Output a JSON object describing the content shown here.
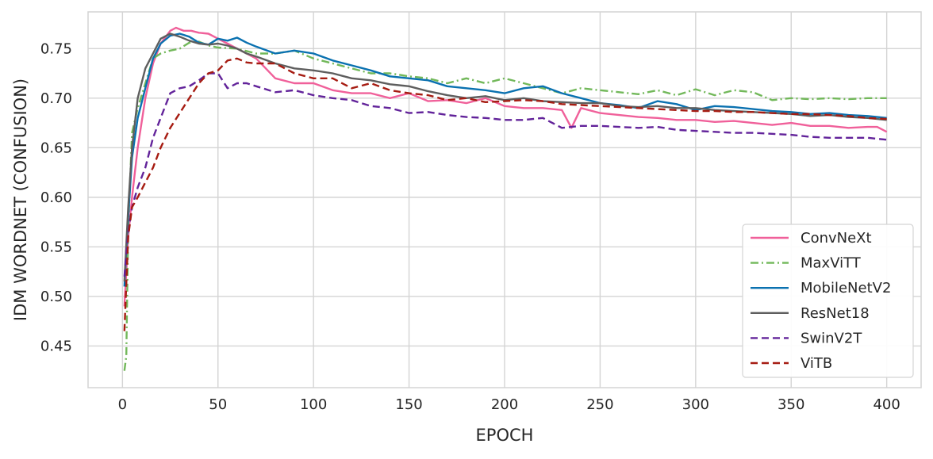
{
  "chart_data": {
    "type": "line",
    "title": "",
    "xlabel": "EPOCH",
    "ylabel": "IDM WORDNET (CONFUSION)",
    "xlim": [
      -18,
      418
    ],
    "ylim": [
      0.408,
      0.787
    ],
    "xticks": [
      0,
      50,
      100,
      150,
      200,
      250,
      300,
      350,
      400
    ],
    "yticks": [
      0.45,
      0.5,
      0.55,
      0.6,
      0.65,
      0.7,
      0.75
    ],
    "ytick_labels": [
      "0.45",
      "0.50",
      "0.55",
      "0.60",
      "0.65",
      "0.70",
      "0.75"
    ],
    "grid": true,
    "legend_position": "lower-right",
    "series": [
      {
        "name": "ConvNeXt",
        "color": "#f0609a",
        "dash": "solid",
        "x": [
          1,
          3,
          5,
          8,
          12,
          16,
          20,
          25,
          28,
          32,
          36,
          40,
          45,
          50,
          55,
          60,
          65,
          70,
          75,
          80,
          90,
          100,
          110,
          120,
          130,
          140,
          150,
          160,
          170,
          180,
          190,
          200,
          210,
          220,
          230,
          235,
          240,
          250,
          260,
          270,
          280,
          290,
          300,
          310,
          320,
          330,
          340,
          350,
          360,
          370,
          380,
          390,
          395,
          400
        ],
        "y": [
          0.49,
          0.56,
          0.6,
          0.65,
          0.7,
          0.735,
          0.755,
          0.768,
          0.771,
          0.768,
          0.768,
          0.766,
          0.765,
          0.76,
          0.755,
          0.75,
          0.745,
          0.74,
          0.73,
          0.72,
          0.715,
          0.715,
          0.708,
          0.705,
          0.705,
          0.7,
          0.705,
          0.697,
          0.698,
          0.695,
          0.7,
          0.692,
          0.69,
          0.69,
          0.688,
          0.67,
          0.69,
          0.685,
          0.683,
          0.681,
          0.68,
          0.678,
          0.678,
          0.676,
          0.677,
          0.675,
          0.673,
          0.675,
          0.672,
          0.672,
          0.67,
          0.671,
          0.671,
          0.666
        ]
      },
      {
        "name": "MaxViTT",
        "color": "#72b85a",
        "dash": "dashdot",
        "x": [
          1,
          2,
          3,
          5,
          8,
          12,
          16,
          20,
          25,
          30,
          35,
          40,
          45,
          50,
          60,
          70,
          80,
          90,
          100,
          110,
          120,
          130,
          140,
          150,
          160,
          170,
          180,
          190,
          200,
          210,
          220,
          230,
          240,
          250,
          260,
          270,
          280,
          290,
          300,
          310,
          320,
          330,
          340,
          350,
          360,
          370,
          380,
          390,
          400
        ],
        "y": [
          0.425,
          0.44,
          0.57,
          0.665,
          0.69,
          0.715,
          0.74,
          0.745,
          0.748,
          0.75,
          0.756,
          0.757,
          0.753,
          0.751,
          0.75,
          0.745,
          0.745,
          0.748,
          0.74,
          0.735,
          0.73,
          0.725,
          0.725,
          0.722,
          0.72,
          0.715,
          0.72,
          0.715,
          0.72,
          0.715,
          0.71,
          0.705,
          0.71,
          0.708,
          0.706,
          0.704,
          0.708,
          0.703,
          0.709,
          0.703,
          0.708,
          0.706,
          0.698,
          0.7,
          0.699,
          0.7,
          0.699,
          0.7,
          0.7
        ]
      },
      {
        "name": "MobileNetV2",
        "color": "#0a71b0",
        "dash": "solid",
        "x": [
          1,
          3,
          5,
          8,
          12,
          16,
          20,
          25,
          30,
          35,
          40,
          45,
          50,
          55,
          60,
          65,
          70,
          80,
          90,
          100,
          110,
          120,
          130,
          140,
          150,
          160,
          170,
          180,
          190,
          200,
          210,
          220,
          230,
          240,
          250,
          260,
          270,
          280,
          290,
          300,
          310,
          320,
          330,
          340,
          350,
          360,
          370,
          380,
          390,
          400
        ],
        "y": [
          0.51,
          0.58,
          0.64,
          0.68,
          0.71,
          0.74,
          0.755,
          0.763,
          0.765,
          0.762,
          0.756,
          0.754,
          0.76,
          0.758,
          0.761,
          0.756,
          0.752,
          0.745,
          0.748,
          0.745,
          0.738,
          0.733,
          0.728,
          0.722,
          0.72,
          0.718,
          0.712,
          0.71,
          0.708,
          0.705,
          0.71,
          0.712,
          0.705,
          0.7,
          0.695,
          0.693,
          0.69,
          0.697,
          0.694,
          0.688,
          0.692,
          0.691,
          0.689,
          0.687,
          0.686,
          0.684,
          0.685,
          0.683,
          0.682,
          0.68
        ]
      },
      {
        "name": "ResNet18",
        "color": "#5e5e5e",
        "dash": "solid",
        "x": [
          1,
          3,
          5,
          8,
          12,
          16,
          20,
          25,
          30,
          35,
          40,
          45,
          50,
          55,
          60,
          65,
          70,
          80,
          90,
          100,
          110,
          120,
          130,
          140,
          150,
          160,
          170,
          180,
          190,
          200,
          210,
          220,
          230,
          240,
          250,
          260,
          270,
          280,
          290,
          300,
          310,
          320,
          330,
          340,
          350,
          360,
          370,
          380,
          390,
          400
        ],
        "y": [
          0.515,
          0.59,
          0.65,
          0.7,
          0.73,
          0.745,
          0.76,
          0.765,
          0.762,
          0.758,
          0.755,
          0.754,
          0.755,
          0.753,
          0.75,
          0.745,
          0.742,
          0.735,
          0.73,
          0.728,
          0.725,
          0.72,
          0.718,
          0.714,
          0.712,
          0.707,
          0.703,
          0.7,
          0.702,
          0.698,
          0.7,
          0.697,
          0.696,
          0.695,
          0.695,
          0.692,
          0.691,
          0.692,
          0.69,
          0.69,
          0.688,
          0.687,
          0.686,
          0.685,
          0.684,
          0.682,
          0.683,
          0.681,
          0.68,
          0.678
        ]
      },
      {
        "name": "SwinV2T",
        "color": "#62239a",
        "dash": "dashed",
        "x": [
          1,
          3,
          5,
          8,
          12,
          16,
          20,
          25,
          30,
          35,
          40,
          45,
          50,
          55,
          60,
          65,
          70,
          80,
          90,
          100,
          110,
          120,
          130,
          140,
          150,
          160,
          170,
          180,
          190,
          200,
          210,
          220,
          230,
          240,
          250,
          260,
          270,
          280,
          290,
          300,
          310,
          320,
          330,
          340,
          350,
          360,
          370,
          380,
          390,
          400
        ],
        "y": [
          0.52,
          0.565,
          0.59,
          0.61,
          0.63,
          0.66,
          0.68,
          0.705,
          0.71,
          0.712,
          0.718,
          0.725,
          0.725,
          0.71,
          0.715,
          0.715,
          0.712,
          0.706,
          0.708,
          0.703,
          0.7,
          0.698,
          0.692,
          0.69,
          0.685,
          0.686,
          0.683,
          0.681,
          0.68,
          0.678,
          0.678,
          0.68,
          0.67,
          0.672,
          0.672,
          0.671,
          0.67,
          0.671,
          0.668,
          0.667,
          0.666,
          0.665,
          0.665,
          0.664,
          0.663,
          0.661,
          0.66,
          0.66,
          0.66,
          0.658
        ]
      },
      {
        "name": "ViTB",
        "color": "#a61c12",
        "dash": "dashed",
        "x": [
          1,
          3,
          5,
          8,
          12,
          16,
          20,
          25,
          30,
          35,
          40,
          45,
          50,
          55,
          60,
          65,
          70,
          80,
          90,
          100,
          110,
          120,
          130,
          140,
          150,
          160,
          170,
          180,
          190,
          200,
          210,
          220,
          230,
          240,
          250,
          260,
          270,
          280,
          290,
          300,
          310,
          320,
          330,
          340,
          350,
          360,
          370,
          380,
          390,
          400
        ],
        "y": [
          0.465,
          0.56,
          0.59,
          0.6,
          0.615,
          0.63,
          0.65,
          0.67,
          0.685,
          0.7,
          0.715,
          0.725,
          0.728,
          0.738,
          0.74,
          0.736,
          0.735,
          0.735,
          0.725,
          0.72,
          0.72,
          0.71,
          0.715,
          0.708,
          0.705,
          0.703,
          0.698,
          0.7,
          0.696,
          0.697,
          0.698,
          0.697,
          0.694,
          0.693,
          0.692,
          0.691,
          0.69,
          0.689,
          0.688,
          0.687,
          0.687,
          0.686,
          0.686,
          0.685,
          0.684,
          0.684,
          0.683,
          0.682,
          0.68,
          0.679
        ]
      }
    ]
  }
}
